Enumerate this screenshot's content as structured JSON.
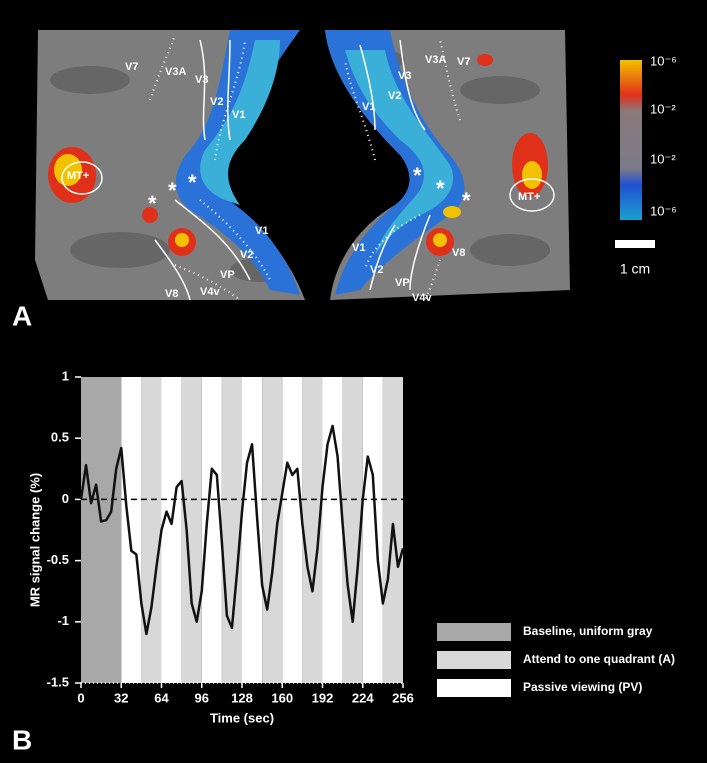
{
  "panel_a": {
    "label": "A",
    "marker": "*",
    "left_areas": [
      "V7",
      "V3A",
      "V3",
      "V2",
      "V1",
      "MT+",
      "V1",
      "V2",
      "VP",
      "V8",
      "V4v"
    ],
    "right_areas": [
      "V3",
      "V3A",
      "V7",
      "V1",
      "V2",
      "MT+",
      "V1",
      "V2",
      "VP",
      "V8",
      "V4v"
    ],
    "colorbar_labels": [
      "10⁻⁶",
      "10⁻²",
      "10⁻²",
      "10⁻⁶"
    ],
    "scale_bar": "1 cm"
  },
  "chart_data": {
    "type": "line",
    "panel_label": "B",
    "x_label": "Time (sec)",
    "y_label": "MR signal change (%)",
    "xlim": [
      0,
      256
    ],
    "ylim": [
      -1.5,
      1
    ],
    "xticks": [
      0,
      32,
      64,
      96,
      128,
      160,
      192,
      224,
      256
    ],
    "yticks": [
      1,
      0.5,
      0,
      -0.5,
      -1,
      -1.5
    ],
    "reference_line": 0,
    "conditions": [
      {
        "name": "Baseline, uniform gray",
        "color": "#a8a8a8"
      },
      {
        "name": "Attend to one quadrant (A)",
        "color": "#d8d8d8"
      },
      {
        "name": "Passive viewing (PV)",
        "color": "#ffffff"
      }
    ],
    "blocks": [
      {
        "start": 0,
        "end": 32,
        "condition": 0
      },
      {
        "start": 32,
        "end": 48,
        "condition": 2
      },
      {
        "start": 48,
        "end": 64,
        "condition": 1
      },
      {
        "start": 64,
        "end": 80,
        "condition": 2
      },
      {
        "start": 80,
        "end": 96,
        "condition": 1
      },
      {
        "start": 96,
        "end": 112,
        "condition": 2
      },
      {
        "start": 112,
        "end": 128,
        "condition": 1
      },
      {
        "start": 128,
        "end": 144,
        "condition": 2
      },
      {
        "start": 144,
        "end": 160,
        "condition": 1
      },
      {
        "start": 160,
        "end": 176,
        "condition": 2
      },
      {
        "start": 176,
        "end": 192,
        "condition": 1
      },
      {
        "start": 192,
        "end": 208,
        "condition": 2
      },
      {
        "start": 208,
        "end": 224,
        "condition": 1
      },
      {
        "start": 224,
        "end": 240,
        "condition": 2
      },
      {
        "start": 240,
        "end": 256,
        "condition": 1
      }
    ],
    "x": [
      0,
      4,
      8,
      12,
      16,
      20,
      24,
      28,
      32,
      36,
      40,
      44,
      48,
      52,
      56,
      60,
      64,
      68,
      72,
      76,
      80,
      84,
      88,
      92,
      96,
      100,
      104,
      108,
      112,
      116,
      120,
      124,
      128,
      132,
      136,
      140,
      144,
      148,
      152,
      156,
      160,
      164,
      168,
      172,
      176,
      180,
      184,
      188,
      192,
      196,
      200,
      204,
      208,
      212,
      216,
      220,
      224,
      228,
      232,
      236,
      240,
      244,
      248,
      252,
      256
    ],
    "series": [
      {
        "color": "#111111",
        "values": [
          0,
          0.28,
          -0.03,
          0.12,
          -0.18,
          -0.17,
          -0.1,
          0.25,
          0.42,
          -0.05,
          -0.42,
          -0.45,
          -0.85,
          -1.1,
          -0.88,
          -0.55,
          -0.25,
          -0.1,
          -0.2,
          0.1,
          0.15,
          -0.25,
          -0.85,
          -1.0,
          -0.75,
          -0.2,
          0.25,
          0.2,
          -0.35,
          -0.95,
          -1.05,
          -0.6,
          -0.1,
          0.3,
          0.45,
          -0.15,
          -0.7,
          -0.9,
          -0.6,
          -0.2,
          0.05,
          0.3,
          0.2,
          0.25,
          -0.2,
          -0.55,
          -0.75,
          -0.4,
          0.1,
          0.45,
          0.6,
          0.35,
          -0.2,
          -0.7,
          -1.0,
          -0.55,
          0.0,
          0.35,
          0.2,
          -0.5,
          -0.85,
          -0.65,
          -0.2,
          -0.55,
          -0.4
        ]
      }
    ]
  }
}
